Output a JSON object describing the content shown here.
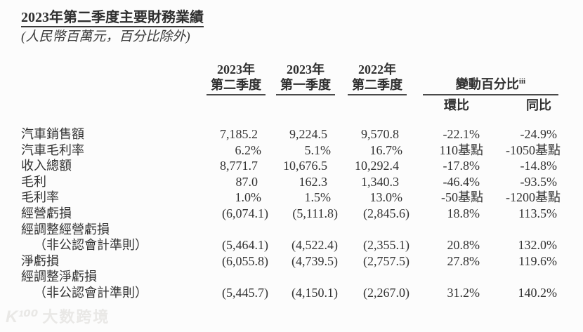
{
  "title": "2023年第二季度主要財務業績",
  "subtitle": "(人民幣百萬元，百分比除外)",
  "table": {
    "columns": [
      {
        "line1": "2023年",
        "line2": "第二季度"
      },
      {
        "line1": "2023年",
        "line2": "第一季度"
      },
      {
        "line1": "2022年",
        "line2": "第二季度"
      }
    ],
    "change_header": {
      "label": "變動百分比",
      "note": "iii",
      "sub": [
        "環比",
        "同比"
      ]
    },
    "rows": [
      {
        "label": "汽車銷售額",
        "values": [
          "7,185.2",
          "9,224.5",
          "9,570.8",
          "-22.1%",
          "-24.9%"
        ]
      },
      {
        "label": "汽車毛利率",
        "values": [
          "6.2%",
          "5.1%",
          "16.7%",
          "110基點",
          "-1050基點"
        ]
      },
      {
        "label": "收入總額",
        "values": [
          "8,771.7",
          "10,676.5",
          "10,292.4",
          "-17.8%",
          "-14.8%"
        ]
      },
      {
        "label": "毛利",
        "values": [
          "87.0",
          "162.3",
          "1,340.3",
          "-46.4%",
          "-93.5%"
        ]
      },
      {
        "label": "毛利率",
        "values": [
          "1.0%",
          "1.5%",
          "13.0%",
          "-50基點",
          "-1200基點"
        ]
      },
      {
        "label": "經營虧損",
        "values": [
          "(6,074.1)",
          "(5,111.8)",
          "(2,845.6)",
          "18.8%",
          "113.5%"
        ]
      },
      {
        "label": "經調整經營虧損",
        "values": [
          "",
          "",
          "",
          "",
          ""
        ]
      },
      {
        "label": "（非公認會計準則）",
        "values": [
          "(5,464.1)",
          "(4,522.4)",
          "(2,355.1)",
          "20.8%",
          "132.0%"
        ]
      },
      {
        "label": "淨虧損",
        "values": [
          "(6,055.8)",
          "(4,739.5)",
          "(2,757.5)",
          "27.8%",
          "119.6%"
        ]
      },
      {
        "label": "經調整淨虧損",
        "values": [
          "",
          "",
          "",
          "",
          ""
        ]
      },
      {
        "label": "（非公認會計準則）",
        "values": [
          "(5,445.7)",
          "(4,150.1)",
          "(2,267.0)",
          "31.2%",
          "140.2%"
        ]
      }
    ]
  },
  "watermark": {
    "logo": "K¹⁰⁰",
    "text": "大数跨境"
  },
  "colors": {
    "ink": "#333333",
    "rule": "#4a4a4a",
    "watermark": "#e9e8e6",
    "background": "#fcfcfc"
  }
}
